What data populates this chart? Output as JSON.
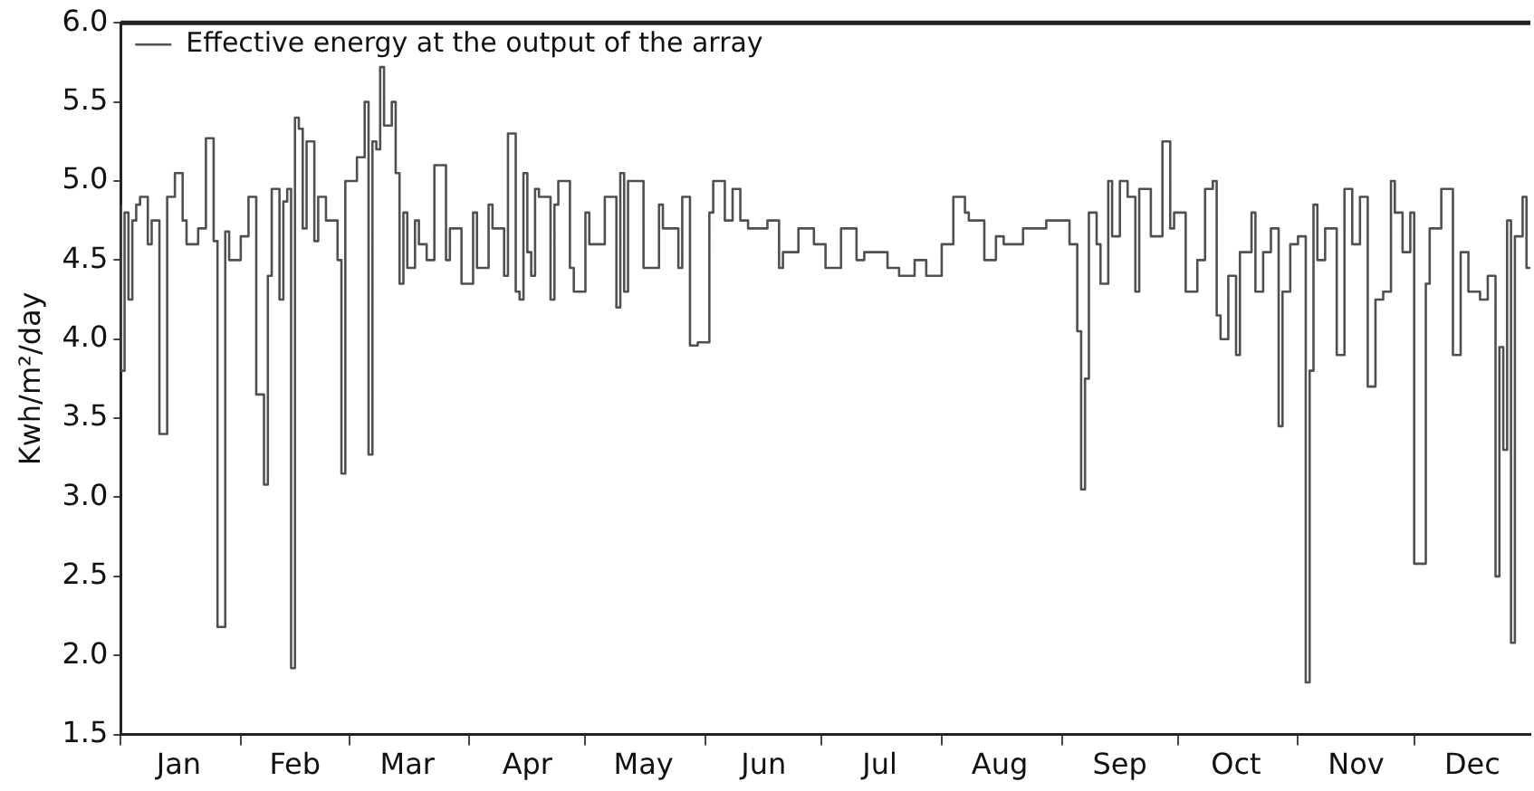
{
  "chart_data": {
    "type": "step",
    "ylabel": "Kwh/m²/day",
    "xlim": [
      "--01-01",
      "--12-31"
    ],
    "ylim": [
      1.5,
      6.0
    ],
    "yticks": [
      1.5,
      {
        "value": 2,
        "label": "2.0"
      },
      2.5,
      {
        "value": 3,
        "label": "3.0"
      },
      3.5,
      {
        "value": 4,
        "label": "4.0"
      },
      4.5,
      {
        "value": 5,
        "label": "5.0"
      },
      5.5,
      {
        "value": 6,
        "label": "6.0"
      }
    ],
    "xticks": [
      {
        "value": "--01-01",
        "label": null
      },
      {
        "value": "--01-16",
        "label": "Jan"
      },
      {
        "value": "--02-01",
        "label": null
      },
      {
        "value": "--02-15",
        "label": "Feb"
      },
      {
        "value": "--03-01",
        "label": null
      },
      {
        "value": "--03-16",
        "label": "Mar"
      },
      {
        "value": "--04-01",
        "label": null
      },
      {
        "value": "--04-16",
        "label": "Apr"
      },
      {
        "value": "--05-01",
        "label": null
      },
      {
        "value": "--05-16",
        "label": "May"
      },
      {
        "value": "--06-01",
        "label": null
      },
      {
        "value": "--06-16",
        "label": "Jun"
      },
      {
        "value": "--07-01",
        "label": null
      },
      {
        "value": "--07-16",
        "label": "Jul"
      },
      {
        "value": "--08-01",
        "label": null
      },
      {
        "value": "--08-16",
        "label": "Aug"
      },
      {
        "value": "--09-01",
        "label": null
      },
      {
        "value": "--09-16",
        "label": "Sep"
      },
      {
        "value": "--10-01",
        "label": null
      },
      {
        "value": "--10-16",
        "label": "Oct"
      },
      {
        "value": "--11-01",
        "label": null
      },
      {
        "value": "--11-16",
        "label": "Nov"
      },
      {
        "value": "--12-01",
        "label": null
      },
      {
        "value": "--12-16",
        "label": "Dec"
      }
    ],
    "legend": "top left",
    "grid": false,
    "marker": "none",
    "line_style": "solid",
    "series": [
      {
        "name": "Effective energy at the output of the array",
        "color": "#505050",
        "x": [
          "--01-01",
          "--01-02",
          "--01-03",
          "--01-04",
          "--01-05",
          "--01-06",
          "--01-08",
          "--01-09",
          "--01-11",
          "--01-13",
          "--01-15",
          "--01-17",
          "--01-18",
          "--01-21",
          "--01-23",
          "--01-25",
          "--01-26",
          "--01-28",
          "--01-29",
          "--02-01",
          "--02-03",
          "--02-05",
          "--02-07",
          "--02-08",
          "--02-09",
          "--02-11",
          "--02-12",
          "--02-13",
          "--02-14",
          "--02-15",
          "--02-16",
          "--02-17",
          "--02-18",
          "--02-20",
          "--02-21",
          "--02-23",
          "--02-26",
          "--02-27",
          "--02-28",
          "--03-03",
          "--03-05",
          "--03-06",
          "--03-07",
          "--03-08",
          "--03-09",
          "--03-10",
          "--03-12",
          "--03-13",
          "--03-14",
          "--03-15",
          "--03-16",
          "--03-18",
          "--03-19",
          "--03-21",
          "--03-23",
          "--03-26",
          "--03-27",
          "--03-30",
          "--04-02",
          "--04-03",
          "--04-06",
          "--04-07",
          "--04-10",
          "--04-11",
          "--04-13",
          "--04-14",
          "--04-15",
          "--04-16",
          "--04-17",
          "--04-18",
          "--04-19",
          "--04-22",
          "--04-23",
          "--04-24",
          "--04-27",
          "--04-28",
          "--05-01",
          "--05-02",
          "--05-06",
          "--05-09",
          "--05-10",
          "--05-11",
          "--05-12",
          "--05-16",
          "--05-20",
          "--05-21",
          "--05-25",
          "--05-26",
          "--05-28",
          "--05-30",
          "--06-02",
          "--06-03",
          "--06-06",
          "--06-08",
          "--06-10",
          "--06-12",
          "--06-17",
          "--06-20",
          "--06-21",
          "--06-25",
          "--06-29",
          "--07-02",
          "--07-06",
          "--07-10",
          "--07-12",
          "--07-18",
          "--07-21",
          "--07-25",
          "--07-28",
          "--08-01",
          "--08-04",
          "--08-07",
          "--08-08",
          "--08-12",
          "--08-15",
          "--08-17",
          "--08-22",
          "--08-28",
          "--09-03",
          "--09-05",
          "--09-06",
          "--09-07",
          "--09-08",
          "--09-09",
          "--09-10",
          "--09-11",
          "--09-13",
          "--09-14",
          "--09-16",
          "--09-18",
          "--09-20",
          "--09-21",
          "--09-24",
          "--09-27",
          "--09-29",
          "--09-30",
          "--10-03",
          "--10-06",
          "--10-08",
          "--10-10",
          "--10-11",
          "--10-12",
          "--10-14",
          "--10-16",
          "--10-17",
          "--10-20",
          "--10-21",
          "--10-23",
          "--10-25",
          "--10-27",
          "--10-28",
          "--10-30",
          "--11-01",
          "--11-03",
          "--11-04",
          "--11-05",
          "--11-06",
          "--11-08",
          "--11-11",
          "--11-13",
          "--11-15",
          "--11-17",
          "--11-19",
          "--11-21",
          "--11-23",
          "--11-25",
          "--11-26",
          "--11-28",
          "--11-30",
          "--12-01",
          "--12-04",
          "--12-05",
          "--12-08",
          "--12-11",
          "--12-13",
          "--12-15",
          "--12-18",
          "--12-20",
          "--12-22",
          "--12-23",
          "--12-24",
          "--12-25",
          "--12-26",
          "--12-27",
          "--12-29",
          "--12-30",
          "--12-31"
        ],
        "values": [
          4.85,
          3.8,
          4.8,
          4.25,
          4.75,
          4.85,
          4.9,
          4.6,
          4.75,
          3.4,
          4.9,
          5.05,
          4.75,
          4.6,
          4.7,
          5.27,
          4.62,
          2.18,
          4.68,
          4.5,
          4.65,
          4.9,
          3.65,
          3.08,
          4.4,
          4.95,
          4.25,
          4.87,
          4.95,
          1.92,
          5.4,
          5.33,
          4.7,
          5.25,
          4.62,
          4.9,
          4.75,
          4.5,
          3.15,
          5.0,
          5.15,
          5.5,
          3.27,
          5.25,
          5.2,
          5.72,
          5.35,
          5.5,
          5.05,
          4.35,
          4.8,
          4.45,
          4.75,
          4.6,
          4.5,
          5.1,
          4.5,
          4.7,
          4.35,
          4.8,
          4.45,
          4.85,
          4.7,
          4.4,
          5.3,
          4.3,
          4.25,
          5.05,
          4.55,
          4.4,
          4.95,
          4.9,
          4.25,
          4.85,
          5.0,
          4.45,
          4.3,
          4.8,
          4.6,
          4.9,
          4.2,
          5.05,
          4.3,
          5.0,
          4.45,
          4.85,
          4.7,
          4.45,
          4.9,
          3.96,
          3.98,
          4.8,
          5.0,
          4.75,
          4.95,
          4.75,
          4.7,
          4.75,
          4.45,
          4.55,
          4.7,
          4.6,
          4.45,
          4.7,
          4.5,
          4.55,
          4.45,
          4.4,
          4.5,
          4.4,
          4.6,
          4.9,
          4.8,
          4.75,
          4.5,
          4.65,
          4.6,
          4.7,
          4.75,
          4.6,
          4.05,
          3.05,
          3.75,
          4.8,
          4.8,
          4.6,
          4.35,
          5.0,
          4.65,
          5.0,
          4.9,
          4.3,
          4.95,
          4.65,
          5.25,
          4.7,
          4.8,
          4.3,
          4.5,
          4.95,
          5.0,
          4.15,
          4.0,
          4.4,
          3.9,
          4.55,
          4.8,
          4.3,
          4.55,
          4.7,
          3.45,
          4.3,
          4.6,
          4.65,
          1.83,
          3.8,
          4.85,
          4.5,
          4.7,
          3.9,
          4.95,
          4.6,
          4.9,
          3.7,
          4.25,
          4.3,
          5.0,
          4.8,
          4.55,
          4.8,
          2.58,
          4.35,
          4.7,
          4.95,
          3.9,
          4.55,
          4.3,
          4.25,
          4.4,
          2.5,
          3.95,
          3.3,
          4.75,
          2.08,
          4.65,
          4.9,
          4.45
        ]
      }
    ]
  }
}
